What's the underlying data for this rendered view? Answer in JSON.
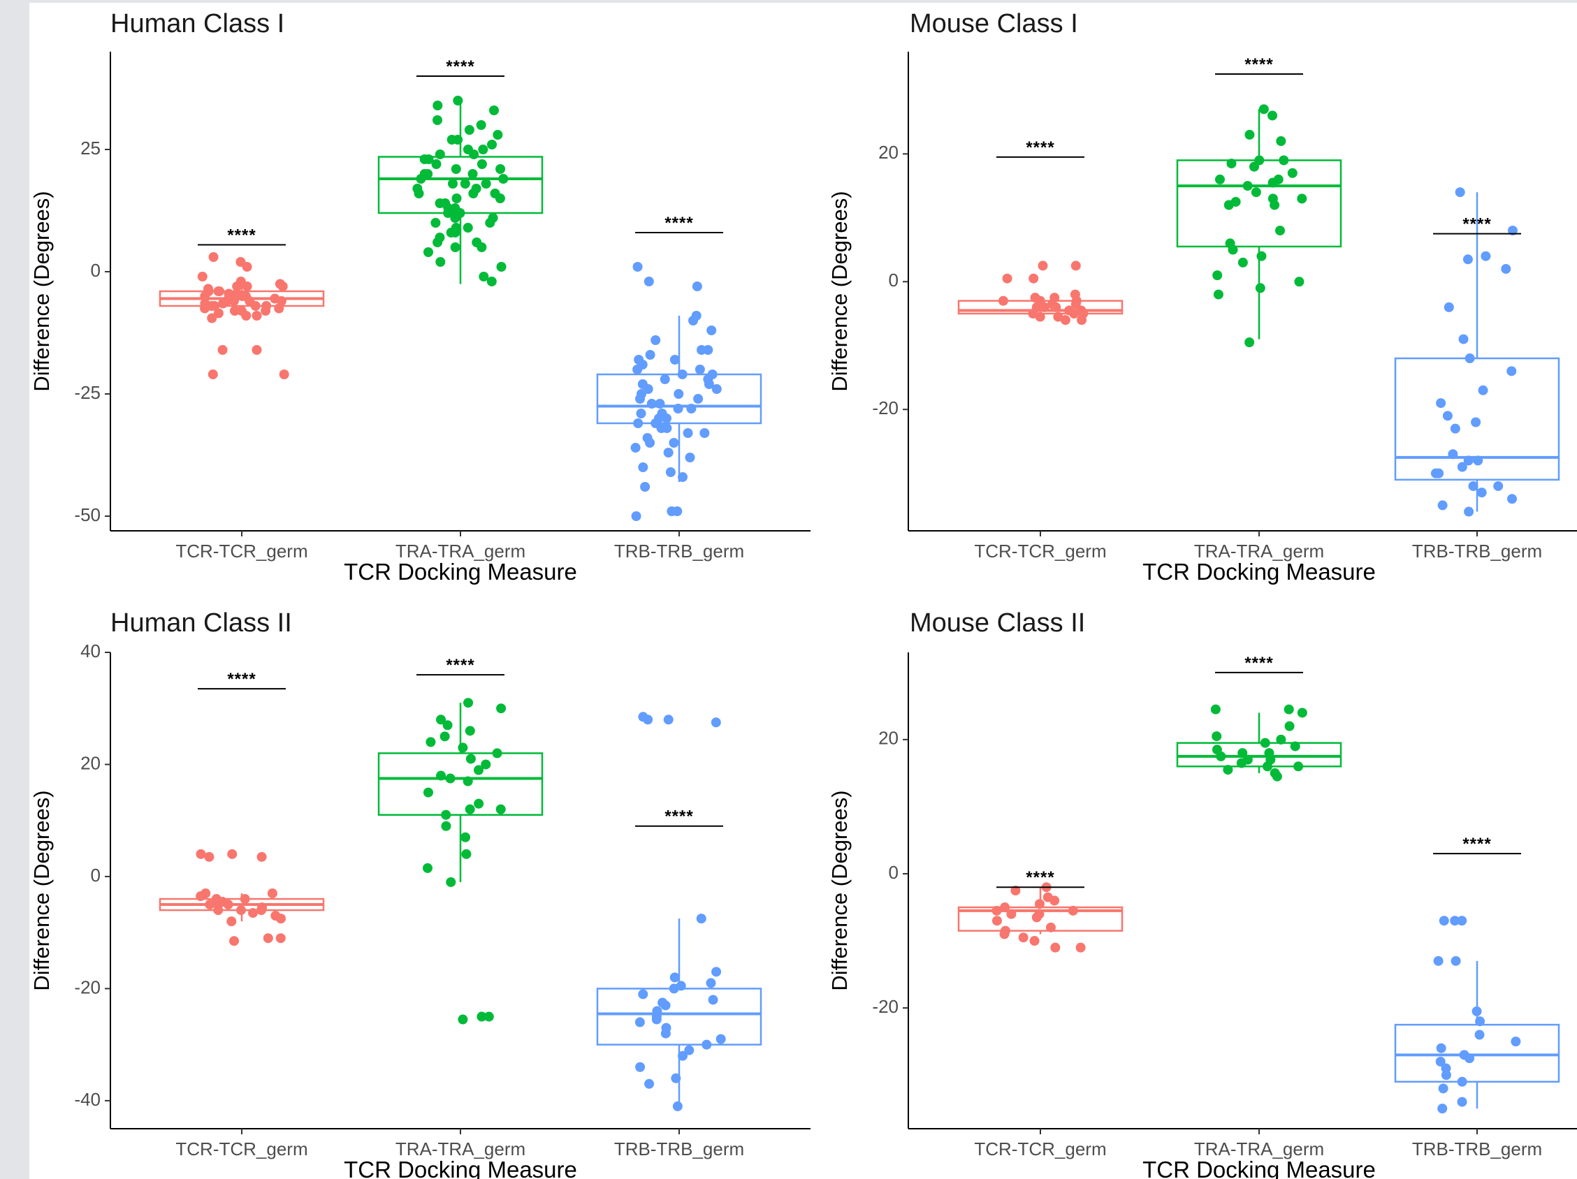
{
  "colors": {
    "TCR-TCR_germ": "#f8766d",
    "TRA-TRA_germ": "#00ba38",
    "TRB-TRB_germ": "#619cff"
  },
  "chart_data": [
    {
      "type": "box",
      "title": "Human Class I",
      "xlabel": "TCR Docking Measure",
      "ylabel": "Difference (Degrees)",
      "categories": [
        "TCR-TCR_germ",
        "TRA-TRA_germ",
        "TRB-TRB_germ"
      ],
      "ylim": [
        -53,
        45
      ],
      "yticks": [
        -50,
        -25,
        0,
        25
      ],
      "grid": false,
      "legend": "none",
      "boxes": [
        {
          "q1": -7,
          "median": -5.5,
          "q3": -4,
          "whisker_low": -8.5,
          "whisker_high": -2.5,
          "points": [
            -2,
            -3,
            -3.5,
            -4,
            -4.5,
            -5,
            -5,
            -5.5,
            -6,
            -6,
            -6.5,
            -7,
            -7,
            -7.5,
            -8,
            -8.5,
            -9,
            -9.5,
            1,
            2,
            3,
            -1,
            -2.5,
            -3,
            -4,
            -5,
            -6,
            -7,
            -8,
            -9,
            -16,
            -16,
            -21,
            -21,
            -3,
            -4,
            -5,
            -6,
            -7,
            -8,
            -4.5,
            -5.5,
            -6.5,
            -7.5
          ]
        },
        {
          "q1": 12,
          "median": 19,
          "q3": 23.5,
          "whisker_low": -2.5,
          "whisker_high": 35,
          "points": [
            34,
            33,
            35,
            31,
            29,
            27,
            25,
            24,
            23,
            22,
            21,
            20,
            19,
            18,
            17,
            16,
            15,
            14,
            13,
            12,
            11,
            10,
            9,
            8,
            7,
            6,
            5,
            4,
            2,
            -1,
            -2,
            1,
            28,
            26,
            22,
            20,
            18,
            16,
            14,
            12,
            10,
            8,
            6,
            30,
            24,
            21,
            17,
            13,
            9,
            5,
            23,
            19,
            15,
            11,
            25,
            27,
            20,
            18,
            16,
            14
          ]
        },
        {
          "q1": -31,
          "median": -27.5,
          "q3": -21,
          "whisker_low": -43,
          "whisker_high": -9,
          "points": [
            1,
            -2,
            -3,
            -9,
            -10,
            -12,
            -14,
            -16,
            -17,
            -18,
            -19,
            -20,
            -21,
            -22,
            -23,
            -24,
            -25,
            -26,
            -27,
            -28,
            -29,
            -30,
            -31,
            -32,
            -33,
            -34,
            -35,
            -36,
            -38,
            -40,
            -41,
            -44,
            -49,
            -49,
            -50,
            -16,
            -18,
            -20,
            -22,
            -24,
            -26,
            -28,
            -30,
            -32,
            -19,
            -21,
            -23,
            -25,
            -27,
            -29,
            -31,
            -33,
            -35,
            -37,
            -42
          ]
        }
      ],
      "significance": [
        {
          "category": "TCR-TCR_germ",
          "label": "****",
          "y": 5.5
        },
        {
          "category": "TRA-TRA_germ",
          "label": "****",
          "y": 40
        },
        {
          "category": "TRB-TRB_germ",
          "label": "****",
          "y": 8
        }
      ]
    },
    {
      "type": "box",
      "title": "Mouse Class I",
      "xlabel": "TCR Docking Measure",
      "ylabel": "Difference (Degrees)",
      "categories": [
        "TCR-TCR_germ",
        "TRA-TRA_germ",
        "TRB-TRB_germ"
      ],
      "ylim": [
        -39,
        36
      ],
      "yticks": [
        -20,
        0,
        20
      ],
      "grid": false,
      "legend": "none",
      "boxes": [
        {
          "q1": -5,
          "median": -4.5,
          "q3": -3,
          "whisker_low": -5.5,
          "whisker_high": -2.5,
          "points": [
            2.5,
            2.5,
            0.5,
            0.5,
            -2,
            -2.5,
            -3,
            -3.5,
            -4,
            -4,
            -4.5,
            -5,
            -5,
            -5.5,
            -5.5,
            -6,
            -3,
            -4,
            -5,
            -3.5,
            -4.5,
            -2.5,
            -3,
            -6
          ]
        },
        {
          "q1": 5.5,
          "median": 15,
          "q3": 19,
          "whisker_low": -9,
          "whisker_high": 27,
          "points": [
            27,
            26,
            23,
            22,
            19,
            19,
            18,
            17,
            16,
            16,
            15,
            14,
            13,
            13,
            12,
            12,
            6,
            5,
            4,
            3,
            1,
            0,
            -1,
            -2,
            -9.5,
            18.5,
            15.5,
            12.5,
            8
          ]
        },
        {
          "q1": -31,
          "median": -27.5,
          "q3": -12,
          "whisker_low": -36,
          "whisker_high": 14,
          "points": [
            14,
            8,
            4,
            3.5,
            2,
            -4,
            -9,
            -12,
            -14,
            -17,
            -19,
            -21,
            -22,
            -23,
            -28,
            -28,
            -29,
            -30,
            -30,
            -32,
            -32,
            -33,
            -34,
            -35,
            -36,
            -27
          ]
        }
      ],
      "significance": [
        {
          "category": "TCR-TCR_germ",
          "label": "****",
          "y": 19.5
        },
        {
          "category": "TRA-TRA_germ",
          "label": "****",
          "y": 32.5
        },
        {
          "category": "TRB-TRB_germ",
          "label": "****",
          "y": 7.5
        }
      ]
    },
    {
      "type": "box",
      "title": "Human Class II",
      "xlabel": "TCR Docking Measure",
      "ylabel": "Difference (Degrees)",
      "categories": [
        "TCR-TCR_germ",
        "TRA-TRA_germ",
        "TRB-TRB_germ"
      ],
      "ylim": [
        -45,
        40
      ],
      "yticks": [
        -40,
        -20,
        0,
        20,
        40
      ],
      "grid": false,
      "legend": "none",
      "boxes": [
        {
          "q1": -6,
          "median": -5,
          "q3": -4,
          "whisker_low": -8,
          "whisker_high": -3,
          "points": [
            4,
            4,
            3.5,
            3.5,
            -3,
            -3.5,
            -4,
            -4.5,
            -5,
            -5,
            -5.5,
            -6,
            -6,
            -6.5,
            -7,
            -7.5,
            -8,
            -11,
            -11,
            -11.5,
            -3,
            -4,
            -5,
            -6
          ]
        },
        {
          "q1": 11,
          "median": 17.5,
          "q3": 22,
          "whisker_low": -1,
          "whisker_high": 31,
          "points": [
            31,
            30,
            28,
            27,
            25,
            24,
            22,
            21,
            20,
            19,
            18,
            17,
            15,
            13,
            12,
            12,
            11,
            9,
            7,
            4,
            1.5,
            -1,
            -25,
            -25,
            -25.5,
            23,
            26,
            17.5
          ]
        },
        {
          "q1": -30,
          "median": -24.5,
          "q3": -20,
          "whisker_low": -41,
          "whisker_high": -7.5,
          "points": [
            28.5,
            28,
            28,
            27.5,
            -7.5,
            -17,
            -18,
            -19,
            -20,
            -21,
            -22,
            -23,
            -24,
            -25,
            -26,
            -27,
            -28,
            -29,
            -30,
            -31,
            -32,
            -34,
            -36,
            -37,
            -41,
            -22.5,
            -25.5,
            -19.5
          ]
        }
      ],
      "significance": [
        {
          "category": "TCR-TCR_germ",
          "label": "****",
          "y": 33.5
        },
        {
          "category": "TRA-TRA_germ",
          "label": "****",
          "y": 36
        },
        {
          "category": "TRB-TRB_germ",
          "label": "****",
          "y": 9
        }
      ]
    },
    {
      "type": "box",
      "title": "Mouse Class II",
      "xlabel": "TCR Docking Measure",
      "ylabel": "Difference (Degrees)",
      "categories": [
        "TCR-TCR_germ",
        "TRA-TRA_germ",
        "TRB-TRB_germ"
      ],
      "ylim": [
        -38,
        33
      ],
      "yticks": [
        -20,
        0,
        20
      ],
      "grid": false,
      "legend": "none",
      "boxes": [
        {
          "q1": -8.5,
          "median": -5.5,
          "q3": -5,
          "whisker_low": -9,
          "whisker_high": -2,
          "points": [
            -2,
            -2.5,
            -3.5,
            -4,
            -4.5,
            -5,
            -5.5,
            -6,
            -6.5,
            -7,
            -8,
            -8.5,
            -9,
            -9.5,
            -10,
            -11,
            -11,
            -5.5,
            -6
          ]
        },
        {
          "q1": 16,
          "median": 17.5,
          "q3": 19.5,
          "whisker_low": 15,
          "whisker_high": 24,
          "points": [
            24.5,
            24.5,
            24,
            22,
            20,
            19.5,
            19,
            18.5,
            18,
            18,
            17.5,
            17,
            17,
            16.5,
            16,
            16,
            15.5,
            15,
            14.5,
            20.5
          ]
        },
        {
          "q1": -31,
          "median": -27,
          "q3": -22.5,
          "whisker_low": -35,
          "whisker_high": -13,
          "points": [
            -7,
            -7,
            -7,
            -13,
            -13,
            -20.5,
            -22,
            -24,
            -25,
            -26,
            -27,
            -28,
            -29,
            -30,
            -31,
            -32,
            -34,
            -35,
            -27.5
          ]
        }
      ],
      "significance": [
        {
          "category": "TCR-TCR_germ",
          "label": "****",
          "y": -2
        },
        {
          "category": "TRA-TRA_germ",
          "label": "****",
          "y": 30
        },
        {
          "category": "TRB-TRB_germ",
          "label": "****",
          "y": 3
        }
      ]
    }
  ]
}
